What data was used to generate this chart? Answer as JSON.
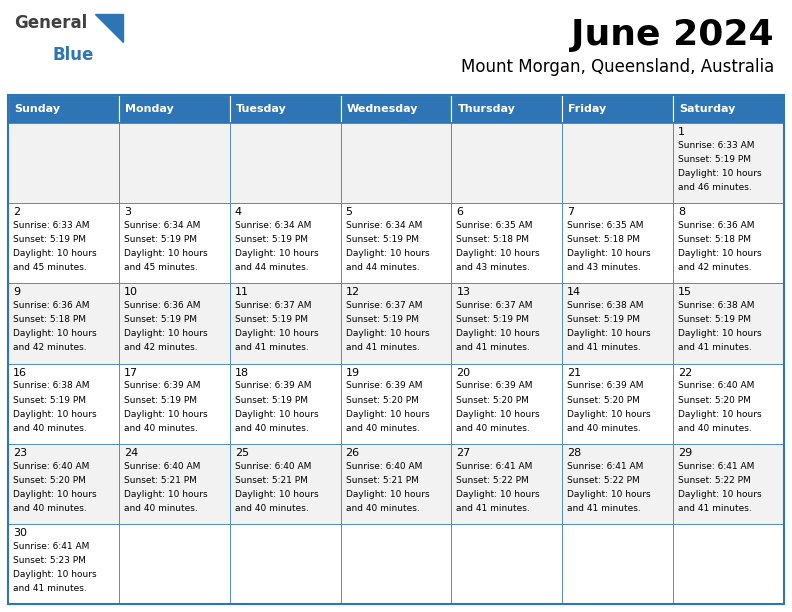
{
  "title": "June 2024",
  "subtitle": "Mount Morgan, Queensland, Australia",
  "header_bg": "#2E75B6",
  "header_text_color": "#FFFFFF",
  "days_of_week": [
    "Sunday",
    "Monday",
    "Tuesday",
    "Wednesday",
    "Thursday",
    "Friday",
    "Saturday"
  ],
  "row_bg_odd": "#F2F2F2",
  "row_bg_even": "#FFFFFF",
  "border_color": "#2E75B6",
  "text_color": "#000000",
  "calendar": [
    [
      null,
      null,
      null,
      null,
      null,
      null,
      1
    ],
    [
      2,
      3,
      4,
      5,
      6,
      7,
      8
    ],
    [
      9,
      10,
      11,
      12,
      13,
      14,
      15
    ],
    [
      16,
      17,
      18,
      19,
      20,
      21,
      22
    ],
    [
      23,
      24,
      25,
      26,
      27,
      28,
      29
    ],
    [
      30,
      null,
      null,
      null,
      null,
      null,
      null
    ]
  ],
  "cell_data": {
    "1": {
      "sunrise": "6:33 AM",
      "sunset": "5:19 PM",
      "daylight_h": "10 hours",
      "daylight_m": "46 minutes."
    },
    "2": {
      "sunrise": "6:33 AM",
      "sunset": "5:19 PM",
      "daylight_h": "10 hours",
      "daylight_m": "45 minutes."
    },
    "3": {
      "sunrise": "6:34 AM",
      "sunset": "5:19 PM",
      "daylight_h": "10 hours",
      "daylight_m": "45 minutes."
    },
    "4": {
      "sunrise": "6:34 AM",
      "sunset": "5:19 PM",
      "daylight_h": "10 hours",
      "daylight_m": "44 minutes."
    },
    "5": {
      "sunrise": "6:34 AM",
      "sunset": "5:19 PM",
      "daylight_h": "10 hours",
      "daylight_m": "44 minutes."
    },
    "6": {
      "sunrise": "6:35 AM",
      "sunset": "5:18 PM",
      "daylight_h": "10 hours",
      "daylight_m": "43 minutes."
    },
    "7": {
      "sunrise": "6:35 AM",
      "sunset": "5:18 PM",
      "daylight_h": "10 hours",
      "daylight_m": "43 minutes."
    },
    "8": {
      "sunrise": "6:36 AM",
      "sunset": "5:18 PM",
      "daylight_h": "10 hours",
      "daylight_m": "42 minutes."
    },
    "9": {
      "sunrise": "6:36 AM",
      "sunset": "5:18 PM",
      "daylight_h": "10 hours",
      "daylight_m": "42 minutes."
    },
    "10": {
      "sunrise": "6:36 AM",
      "sunset": "5:19 PM",
      "daylight_h": "10 hours",
      "daylight_m": "42 minutes."
    },
    "11": {
      "sunrise": "6:37 AM",
      "sunset": "5:19 PM",
      "daylight_h": "10 hours",
      "daylight_m": "41 minutes."
    },
    "12": {
      "sunrise": "6:37 AM",
      "sunset": "5:19 PM",
      "daylight_h": "10 hours",
      "daylight_m": "41 minutes."
    },
    "13": {
      "sunrise": "6:37 AM",
      "sunset": "5:19 PM",
      "daylight_h": "10 hours",
      "daylight_m": "41 minutes."
    },
    "14": {
      "sunrise": "6:38 AM",
      "sunset": "5:19 PM",
      "daylight_h": "10 hours",
      "daylight_m": "41 minutes."
    },
    "15": {
      "sunrise": "6:38 AM",
      "sunset": "5:19 PM",
      "daylight_h": "10 hours",
      "daylight_m": "41 minutes."
    },
    "16": {
      "sunrise": "6:38 AM",
      "sunset": "5:19 PM",
      "daylight_h": "10 hours",
      "daylight_m": "40 minutes."
    },
    "17": {
      "sunrise": "6:39 AM",
      "sunset": "5:19 PM",
      "daylight_h": "10 hours",
      "daylight_m": "40 minutes."
    },
    "18": {
      "sunrise": "6:39 AM",
      "sunset": "5:19 PM",
      "daylight_h": "10 hours",
      "daylight_m": "40 minutes."
    },
    "19": {
      "sunrise": "6:39 AM",
      "sunset": "5:20 PM",
      "daylight_h": "10 hours",
      "daylight_m": "40 minutes."
    },
    "20": {
      "sunrise": "6:39 AM",
      "sunset": "5:20 PM",
      "daylight_h": "10 hours",
      "daylight_m": "40 minutes."
    },
    "21": {
      "sunrise": "6:39 AM",
      "sunset": "5:20 PM",
      "daylight_h": "10 hours",
      "daylight_m": "40 minutes."
    },
    "22": {
      "sunrise": "6:40 AM",
      "sunset": "5:20 PM",
      "daylight_h": "10 hours",
      "daylight_m": "40 minutes."
    },
    "23": {
      "sunrise": "6:40 AM",
      "sunset": "5:20 PM",
      "daylight_h": "10 hours",
      "daylight_m": "40 minutes."
    },
    "24": {
      "sunrise": "6:40 AM",
      "sunset": "5:21 PM",
      "daylight_h": "10 hours",
      "daylight_m": "40 minutes."
    },
    "25": {
      "sunrise": "6:40 AM",
      "sunset": "5:21 PM",
      "daylight_h": "10 hours",
      "daylight_m": "40 minutes."
    },
    "26": {
      "sunrise": "6:40 AM",
      "sunset": "5:21 PM",
      "daylight_h": "10 hours",
      "daylight_m": "40 minutes."
    },
    "27": {
      "sunrise": "6:41 AM",
      "sunset": "5:22 PM",
      "daylight_h": "10 hours",
      "daylight_m": "41 minutes."
    },
    "28": {
      "sunrise": "6:41 AM",
      "sunset": "5:22 PM",
      "daylight_h": "10 hours",
      "daylight_m": "41 minutes."
    },
    "29": {
      "sunrise": "6:41 AM",
      "sunset": "5:22 PM",
      "daylight_h": "10 hours",
      "daylight_m": "41 minutes."
    },
    "30": {
      "sunrise": "6:41 AM",
      "sunset": "5:23 PM",
      "daylight_h": "10 hours",
      "daylight_m": "41 minutes."
    }
  },
  "logo_text1": "General",
  "logo_text2": "Blue",
  "fig_width": 7.92,
  "fig_height": 6.12,
  "dpi": 100
}
